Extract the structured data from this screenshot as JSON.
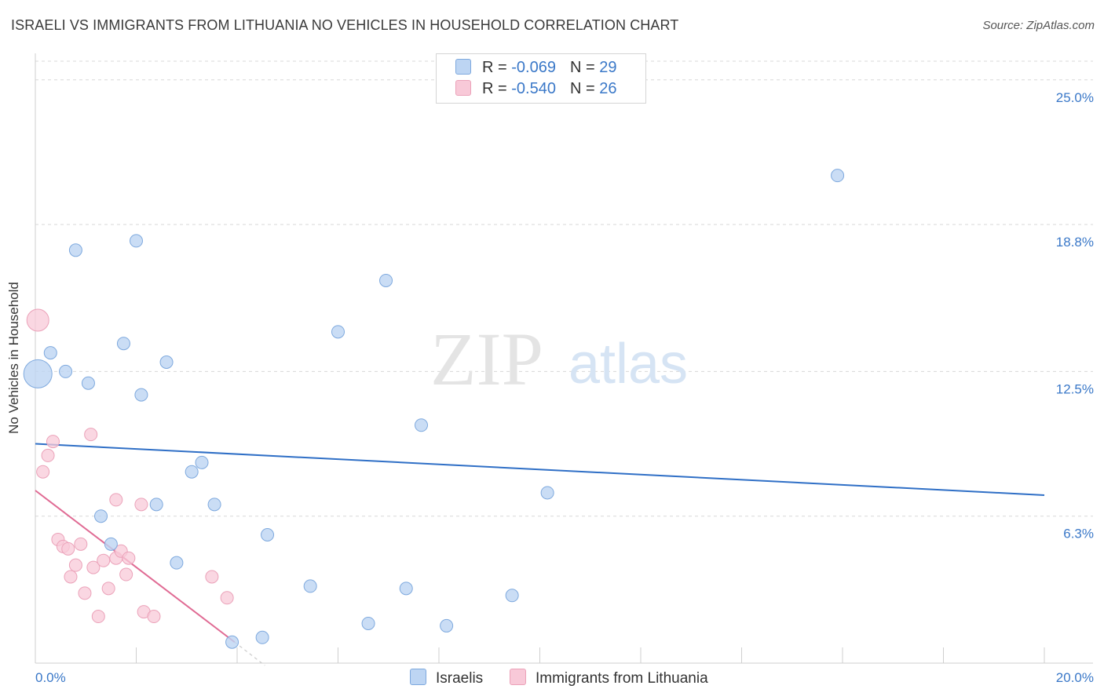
{
  "title": "ISRAELI VS IMMIGRANTS FROM LITHUANIA NO VEHICLES IN HOUSEHOLD CORRELATION CHART",
  "source": "Source: ZipAtlas.com",
  "watermark": {
    "zip": "ZIP",
    "atlas": "atlas"
  },
  "legend": {
    "israelis": {
      "r_label": "R = ",
      "r_value": "-0.069",
      "n_label": "N = ",
      "n_value": "29"
    },
    "lithuania": {
      "r_label": "R = ",
      "r_value": "-0.540",
      "n_label": "N = ",
      "n_value": "26"
    }
  },
  "colors": {
    "blue_fill": "#bdd5f3",
    "blue_stroke": "#7ea9de",
    "blue_line": "#2f6fc6",
    "pink_fill": "#f8c9d8",
    "pink_stroke": "#eba2b9",
    "pink_line": "#e06b94",
    "tick_label": "#3a78c8",
    "grid": "#d8d8d8"
  },
  "chart_data": {
    "type": "scatter",
    "title": "ISRAELI VS IMMIGRANTS FROM LITHUANIA NO VEHICLES IN HOUSEHOLD CORRELATION CHART",
    "xlabel": "",
    "ylabel": "No Vehicles in Household",
    "xlim": [
      0,
      20
    ],
    "ylim": [
      0,
      25
    ],
    "x_tick_labels": [
      "0.0%",
      "20.0%"
    ],
    "y_ticks": [
      6.3,
      12.5,
      18.8,
      25.0
    ],
    "y_tick_labels": [
      "6.3%",
      "12.5%",
      "18.8%",
      "25.0%"
    ],
    "legend_position": "top-center",
    "series": [
      {
        "name": "Israelis",
        "points": [
          {
            "x": 0.05,
            "y": 12.4,
            "big": true
          },
          {
            "x": 0.3,
            "y": 13.3
          },
          {
            "x": 0.6,
            "y": 12.5
          },
          {
            "x": 0.8,
            "y": 17.7
          },
          {
            "x": 1.05,
            "y": 12.0
          },
          {
            "x": 1.3,
            "y": 6.3
          },
          {
            "x": 1.5,
            "y": 5.1
          },
          {
            "x": 1.75,
            "y": 13.7
          },
          {
            "x": 2.0,
            "y": 18.1
          },
          {
            "x": 2.1,
            "y": 11.5
          },
          {
            "x": 2.4,
            "y": 6.8
          },
          {
            "x": 2.6,
            "y": 12.9
          },
          {
            "x": 2.8,
            "y": 4.3
          },
          {
            "x": 3.1,
            "y": 8.2
          },
          {
            "x": 3.3,
            "y": 8.6
          },
          {
            "x": 3.55,
            "y": 6.8
          },
          {
            "x": 3.9,
            "y": 0.9
          },
          {
            "x": 4.5,
            "y": 1.1
          },
          {
            "x": 4.6,
            "y": 5.5
          },
          {
            "x": 5.45,
            "y": 3.3
          },
          {
            "x": 6.0,
            "y": 14.2
          },
          {
            "x": 6.6,
            "y": 1.7
          },
          {
            "x": 6.95,
            "y": 16.4
          },
          {
            "x": 7.35,
            "y": 3.2
          },
          {
            "x": 7.65,
            "y": 10.2
          },
          {
            "x": 8.15,
            "y": 1.6
          },
          {
            "x": 9.45,
            "y": 2.9
          },
          {
            "x": 10.15,
            "y": 7.3
          },
          {
            "x": 15.9,
            "y": 20.9
          }
        ],
        "trend": {
          "x": [
            0,
            20
          ],
          "y": [
            9.4,
            7.2
          ]
        }
      },
      {
        "name": "Immigrants from Lithuania",
        "points": [
          {
            "x": 0.05,
            "y": 14.7,
            "big": true
          },
          {
            "x": 0.15,
            "y": 8.2
          },
          {
            "x": 0.25,
            "y": 8.9
          },
          {
            "x": 0.35,
            "y": 9.5
          },
          {
            "x": 0.45,
            "y": 5.3
          },
          {
            "x": 0.55,
            "y": 5.0
          },
          {
            "x": 0.65,
            "y": 4.9
          },
          {
            "x": 0.7,
            "y": 3.7
          },
          {
            "x": 0.8,
            "y": 4.2
          },
          {
            "x": 0.9,
            "y": 5.1
          },
          {
            "x": 0.98,
            "y": 3.0
          },
          {
            "x": 1.1,
            "y": 9.8
          },
          {
            "x": 1.15,
            "y": 4.1
          },
          {
            "x": 1.25,
            "y": 2.0
          },
          {
            "x": 1.35,
            "y": 4.4
          },
          {
            "x": 1.45,
            "y": 3.2
          },
          {
            "x": 1.6,
            "y": 7.0
          },
          {
            "x": 1.6,
            "y": 4.5
          },
          {
            "x": 1.7,
            "y": 4.8
          },
          {
            "x": 1.8,
            "y": 3.8
          },
          {
            "x": 1.85,
            "y": 4.5
          },
          {
            "x": 2.1,
            "y": 6.8
          },
          {
            "x": 2.15,
            "y": 2.2
          },
          {
            "x": 2.35,
            "y": 2.0
          },
          {
            "x": 3.5,
            "y": 3.7
          },
          {
            "x": 3.8,
            "y": 2.8
          }
        ],
        "trend": {
          "x": [
            0,
            3.95
          ],
          "y": [
            7.4,
            0.9
          ]
        },
        "trend_extension": {
          "x": [
            3.95,
            4.55
          ],
          "y": [
            0.9,
            -0.1
          ]
        }
      }
    ]
  },
  "bottom_legend": [
    "Israelis",
    "Immigrants from Lithuania"
  ]
}
